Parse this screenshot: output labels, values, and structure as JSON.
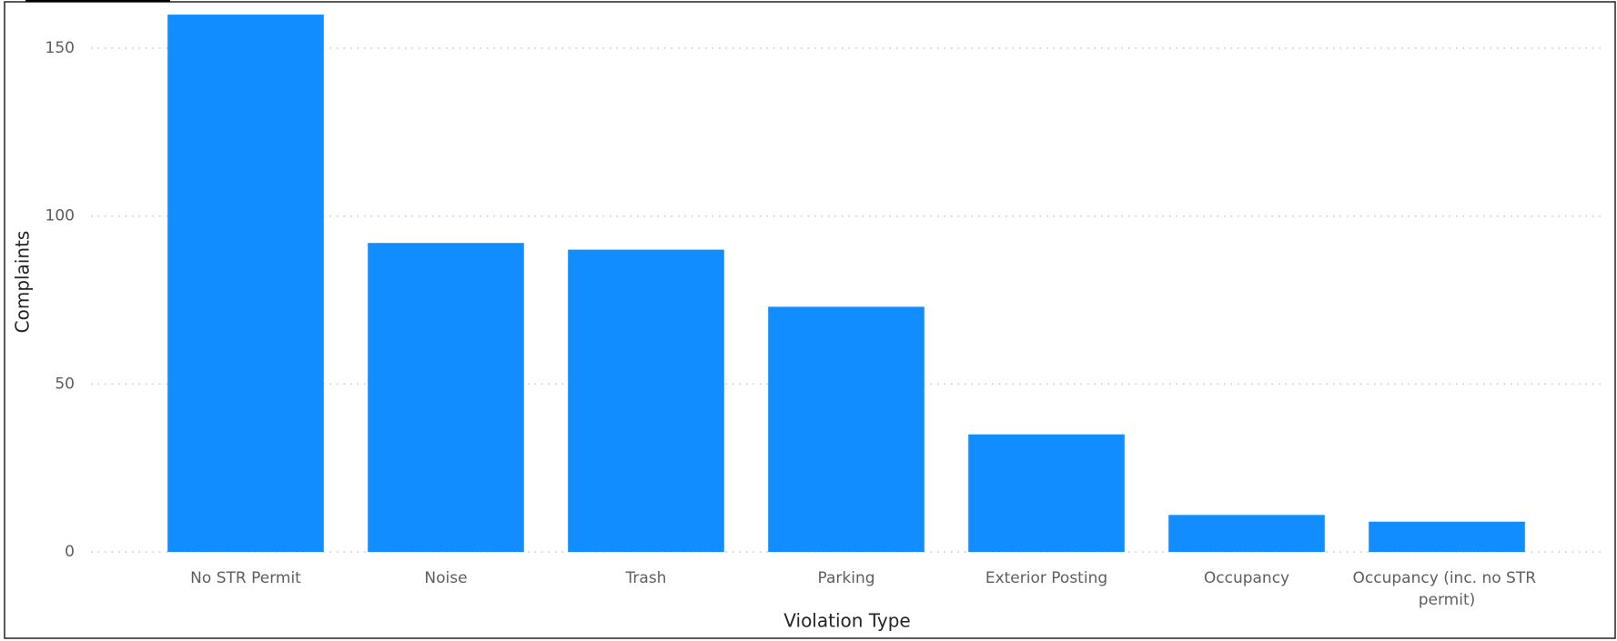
{
  "chart_data": {
    "type": "bar",
    "x_label": "Violation Type",
    "y_label": "Complaints",
    "categories": [
      "No STR Permit",
      "Noise",
      "Trash",
      "Parking",
      "Exterior Posting",
      "Occupancy",
      "Occupancy (inc. no STR permit)"
    ],
    "values": [
      160,
      92,
      90,
      73,
      35,
      11,
      9
    ],
    "color": "#118dff",
    "ylim": [
      0,
      163
    ],
    "yticks": [
      0,
      50,
      100,
      150
    ],
    "grid": true
  }
}
